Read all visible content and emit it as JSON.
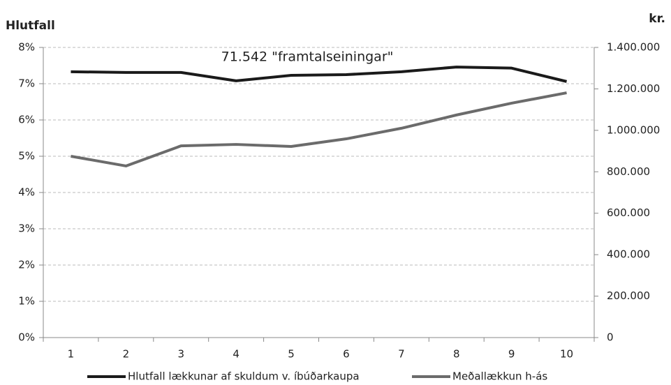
{
  "chart_data": {
    "type": "line",
    "y_axis_label": "Hlutfall",
    "y2_axis_label": "kr.",
    "annotation": "71.542 \"framtalseiningar\"",
    "categories": [
      "1",
      "2",
      "3",
      "4",
      "5",
      "6",
      "7",
      "8",
      "9",
      "10"
    ],
    "series": [
      {
        "name": "Hlutfall lækkunar af skuldum v. íbúðarkaupa",
        "color": "#1a1a1a",
        "axis": "y",
        "values": [
          7.33,
          7.31,
          7.31,
          7.08,
          7.23,
          7.25,
          7.33,
          7.46,
          7.43,
          7.06
        ]
      },
      {
        "name": "Meðallækkun h-ás",
        "color": "#6b6b6b",
        "axis": "y2",
        "values": [
          875000,
          828000,
          925000,
          932000,
          922000,
          959000,
          1010000,
          1074000,
          1131000,
          1181000
        ]
      }
    ],
    "ylim": [
      0,
      8
    ],
    "yticks": [
      {
        "value": 0,
        "label": "0%"
      },
      {
        "value": 1,
        "label": "1%"
      },
      {
        "value": 2,
        "label": "2%"
      },
      {
        "value": 3,
        "label": "3%"
      },
      {
        "value": 4,
        "label": "4%"
      },
      {
        "value": 5,
        "label": "5%"
      },
      {
        "value": 6,
        "label": "6%"
      },
      {
        "value": 7,
        "label": "7%"
      },
      {
        "value": 8,
        "label": "8%"
      }
    ],
    "y2lim": [
      0,
      1400000
    ],
    "y2ticks": [
      0,
      {
        "value": 200000,
        "label": "200.000"
      },
      {
        "value": 400000,
        "label": "400.000"
      },
      {
        "value": 600000,
        "label": "600.000"
      },
      {
        "value": 800000,
        "label": "800.000"
      },
      {
        "value": 1000000,
        "label": "1.000.000"
      },
      {
        "value": 1200000,
        "label": "1.200.000"
      },
      {
        "value": 1400000,
        "label": "1.400.000"
      }
    ],
    "grid": true
  }
}
